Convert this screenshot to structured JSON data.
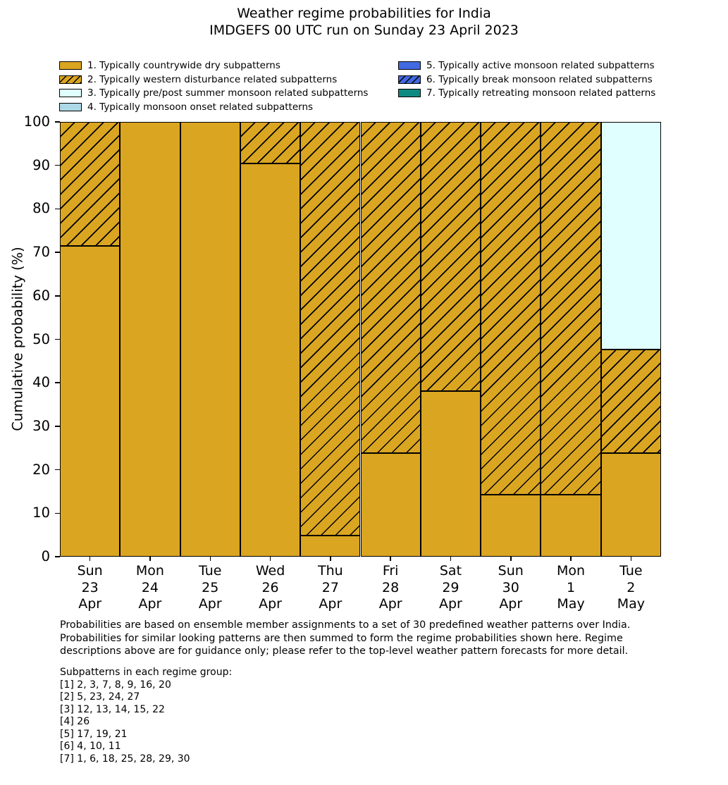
{
  "title": {
    "line1": "Weather regime probabilities for India",
    "line2": "IMDGEFS 00 UTC run on Sunday 23 April 2023"
  },
  "colors": {
    "regime1_orange": "#DAA520",
    "regime3_lightcyan": "#E0FFFF",
    "regime4_lightblue": "#ADD8E6",
    "regime5_royalblue": "#4169E1",
    "regime7_teal": "#0E8A80",
    "edge": "#000000"
  },
  "legend": {
    "items": [
      {
        "label": "1. Typically countrywide dry subpatterns",
        "color": "#DAA520",
        "hatch": false
      },
      {
        "label": "2. Typically western disturbance related subpatterns",
        "color": "#DAA520",
        "hatch": true
      },
      {
        "label": "3. Typically pre/post summer monsoon related subpatterns",
        "color": "#E0FFFF",
        "hatch": false
      },
      {
        "label": "4. Typically monsoon onset related subpatterns",
        "color": "#ADD8E6",
        "hatch": false
      },
      {
        "label": "5. Typically active monsoon related subpatterns",
        "color": "#4169E1",
        "hatch": false
      },
      {
        "label": "6. Typically break monsoon related subpatterns",
        "color": "#4169E1",
        "hatch": true
      },
      {
        "label": "7. Typically retreating monsoon related patterns",
        "color": "#0E8A80",
        "hatch": false
      }
    ]
  },
  "chart_data": {
    "type": "bar",
    "stacked": true,
    "title": "Weather regime probabilities for India — IMDGEFS 00 UTC run on Sunday 23 April 2023",
    "xlabel": "",
    "ylabel": "Cumulative probability (%)",
    "ylim": [
      0,
      100
    ],
    "yticks": [
      0,
      10,
      20,
      30,
      40,
      50,
      60,
      70,
      80,
      90,
      100
    ],
    "grid": false,
    "legend_position": "top",
    "categories": [
      [
        "Sun",
        "23",
        "Apr"
      ],
      [
        "Mon",
        "24",
        "Apr"
      ],
      [
        "Tue",
        "25",
        "Apr"
      ],
      [
        "Wed",
        "26",
        "Apr"
      ],
      [
        "Thu",
        "27",
        "Apr"
      ],
      [
        "Fri",
        "28",
        "Apr"
      ],
      [
        "Sat",
        "29",
        "Apr"
      ],
      [
        "Sun",
        "30",
        "Apr"
      ],
      [
        "Mon",
        "1",
        "May"
      ],
      [
        "Tue",
        "2",
        "May"
      ]
    ],
    "series": [
      {
        "name": "1. Typically countrywide dry subpatterns",
        "color": "#DAA520",
        "hatch": false,
        "values": [
          71.4,
          100,
          100,
          90.5,
          4.8,
          23.8,
          38.1,
          14.3,
          14.3,
          23.8
        ]
      },
      {
        "name": "2. Typically western disturbance related subpatterns",
        "color": "#DAA520",
        "hatch": true,
        "values": [
          28.6,
          0,
          0,
          9.5,
          95.2,
          76.2,
          61.9,
          85.7,
          85.7,
          23.8
        ]
      },
      {
        "name": "3. Typically pre/post summer monsoon related subpatterns",
        "color": "#E0FFFF",
        "hatch": false,
        "values": [
          0,
          0,
          0,
          0,
          0,
          0,
          0,
          0,
          0,
          52.4
        ]
      }
    ]
  },
  "footer": {
    "lines": [
      "Probabilities are based on ensemble member assignments to a set of 30 predefined weather patterns over India.",
      "Probabilities for similar looking patterns are then summed to form the regime probabilities shown here. Regime",
      "descriptions above are for guidance only; please refer to the top-level weather pattern forecasts for more detail."
    ]
  },
  "subpatterns": {
    "header": "Subpatterns in each regime group:",
    "lines": [
      "[1] 2, 3, 7, 8, 9, 16, 20",
      "[2] 5, 23, 24, 27",
      "[3] 12, 13, 14, 15, 22",
      "[4] 26",
      "[5] 17, 19, 21",
      "[6] 4, 10, 11",
      "[7] 1, 6, 18, 25, 28, 29, 30"
    ]
  }
}
